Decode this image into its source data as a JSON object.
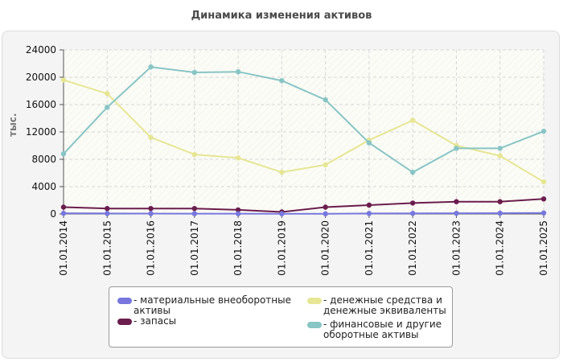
{
  "chart_data": {
    "type": "line",
    "title": "Динамика изменения активов",
    "ylabel": "тыс.",
    "xlabel": "",
    "ylim": [
      0,
      24000
    ],
    "yticks": [
      0,
      4000,
      8000,
      12000,
      16000,
      20000,
      24000
    ],
    "grid": true,
    "legend_position": "bottom",
    "categories": [
      "01.01.2014",
      "01.01.2015",
      "01.01.2016",
      "01.01.2017",
      "01.01.2018",
      "01.01.2019",
      "01.01.2020",
      "01.01.2021",
      "01.01.2022",
      "01.01.2023",
      "01.01.2024",
      "01.01.2025"
    ],
    "series": [
      {
        "name": "материальные внеоборотные активы",
        "color": "#7777dd",
        "values": [
          100,
          80,
          60,
          50,
          40,
          30,
          30,
          80,
          90,
          100,
          120,
          150
        ]
      },
      {
        "name": "запасы",
        "color": "#6b1d4d",
        "values": [
          1000,
          800,
          800,
          800,
          600,
          300,
          1000,
          1300,
          1600,
          1800,
          1800,
          2200
        ]
      },
      {
        "name": "денежные средства и денежные эквиваленты",
        "color": "#e6e694",
        "values": [
          19600,
          17600,
          11200,
          8700,
          8200,
          6100,
          7200,
          10800,
          13700,
          10000,
          8500,
          4700
        ]
      },
      {
        "name": "финансовые и другие оборотные активы",
        "color": "#88c5c5",
        "values": [
          8800,
          15600,
          21500,
          20700,
          20800,
          19500,
          16700,
          10400,
          6100,
          9600,
          9600,
          12100
        ]
      }
    ]
  },
  "legend": {
    "items": [
      {
        "line1": "- материальные внеоборотные",
        "line2": "активы"
      },
      {
        "line1": "- запасы",
        "line2": ""
      },
      {
        "line1": "- денежные средства и",
        "line2": "денежные эквиваленты"
      },
      {
        "line1": "- финансовые и другие",
        "line2": "оборотные активы"
      }
    ]
  }
}
